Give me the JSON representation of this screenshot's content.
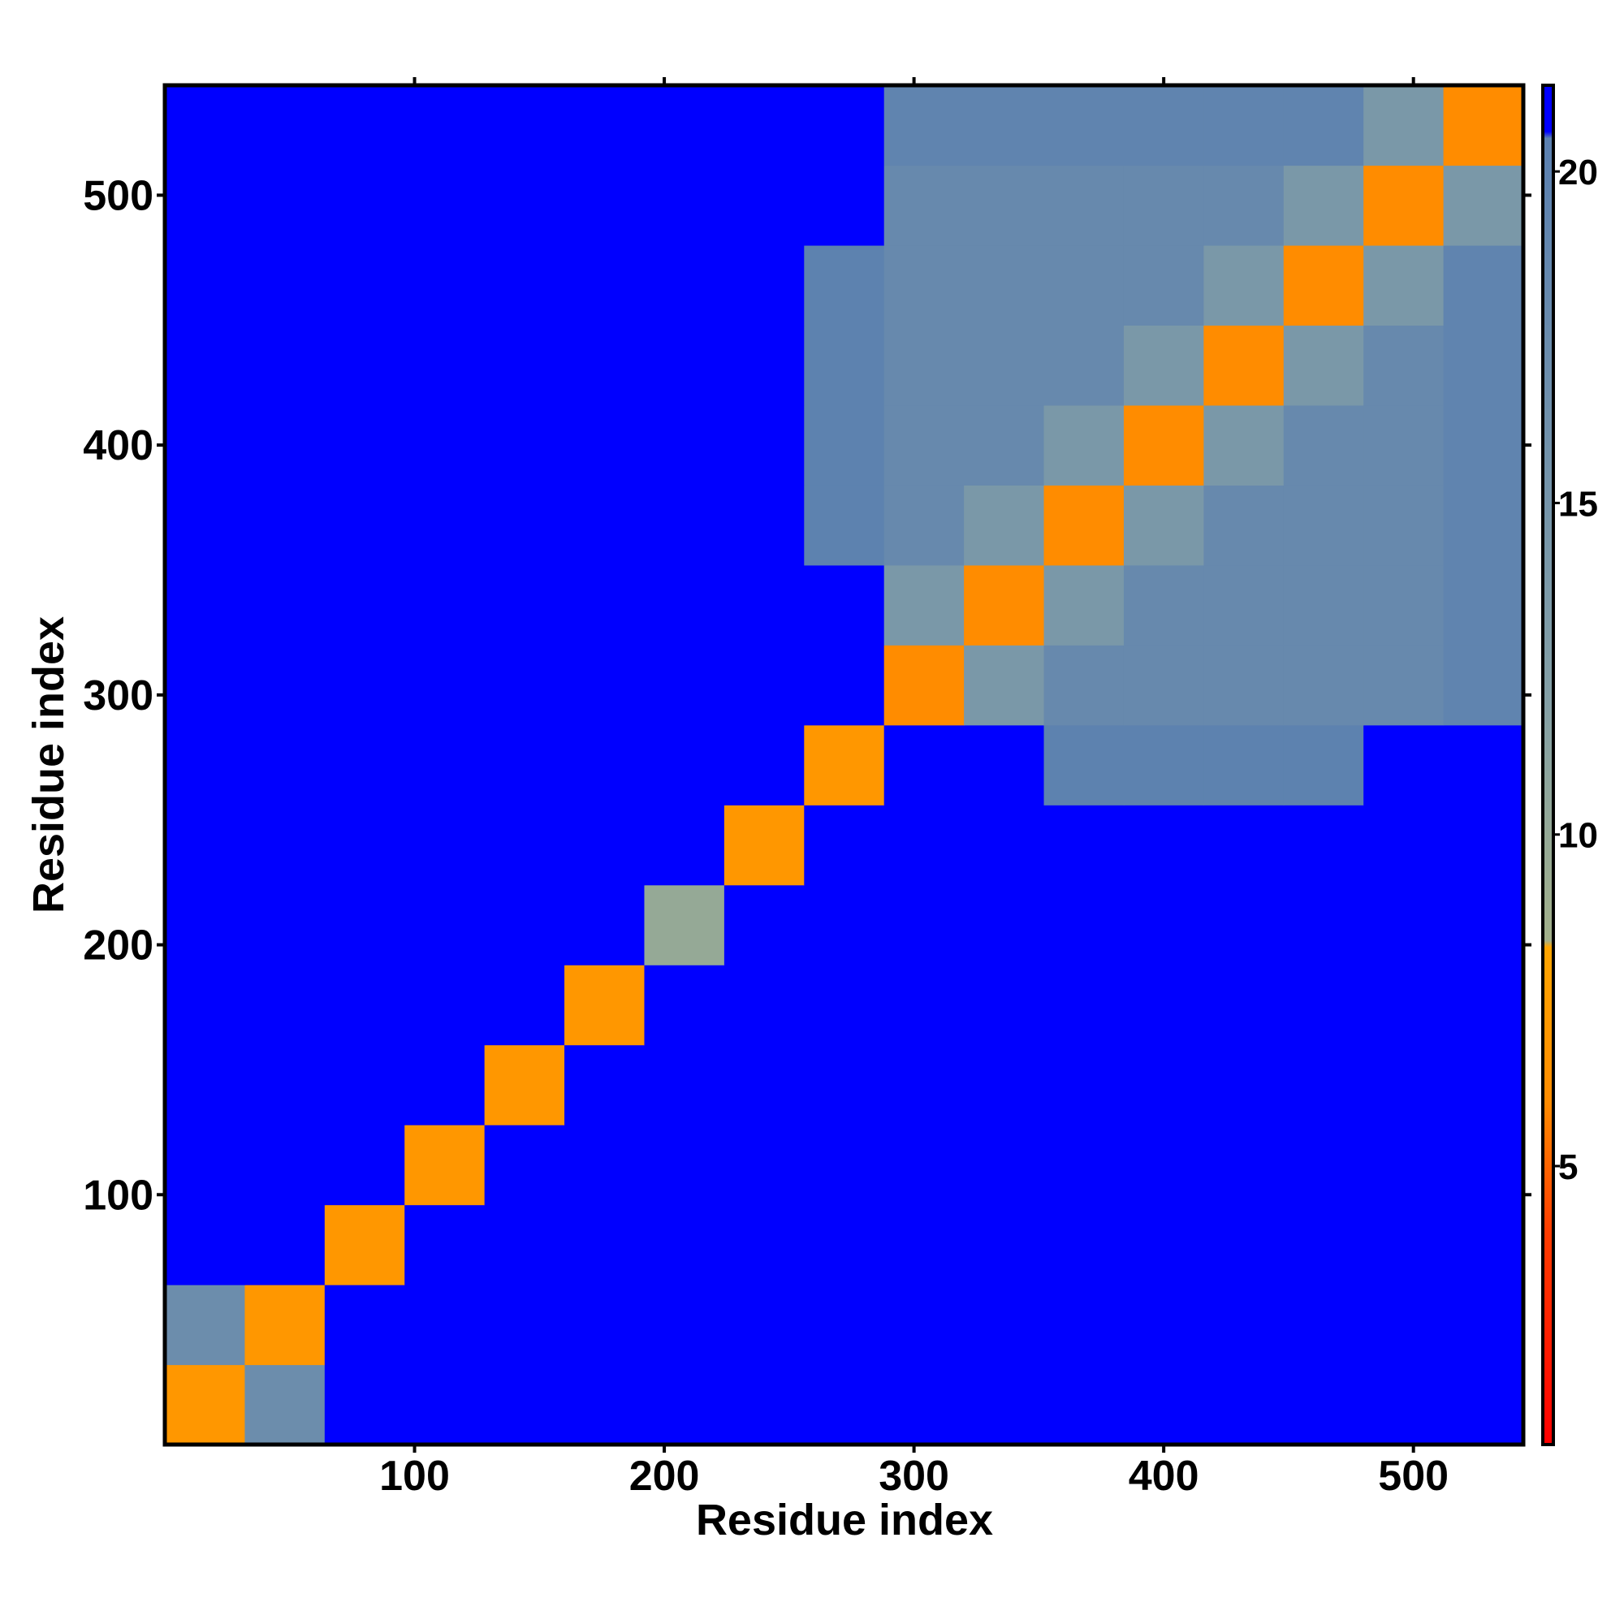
{
  "chart_data": {
    "type": "heatmap",
    "x_label": "Residue index",
    "y_label": "Residue index",
    "xlim": [
      0,
      544
    ],
    "ylim": [
      0,
      544
    ],
    "xticks": [
      100,
      200,
      300,
      400,
      500
    ],
    "yticks": [
      100,
      200,
      300,
      400,
      500
    ],
    "x_bins": [
      0,
      32,
      64,
      96,
      128,
      160,
      192,
      224,
      256,
      288,
      320,
      352,
      384,
      416,
      448,
      480,
      512,
      544
    ],
    "y_bins": [
      0,
      32,
      64,
      96,
      128,
      160,
      192,
      224,
      256,
      288,
      320,
      352,
      384,
      416,
      448,
      480,
      512,
      544
    ],
    "values": [
      [
        7,
        17,
        21,
        21,
        21,
        21,
        21,
        21,
        21,
        21,
        21,
        21,
        21,
        21,
        21,
        21,
        21
      ],
      [
        17,
        7,
        21,
        21,
        21,
        21,
        21,
        21,
        21,
        21,
        21,
        21,
        21,
        21,
        21,
        21,
        21
      ],
      [
        21,
        21,
        7,
        21,
        21,
        21,
        21,
        21,
        21,
        21,
        21,
        21,
        21,
        21,
        21,
        21,
        21
      ],
      [
        21,
        21,
        21,
        7,
        21,
        21,
        21,
        21,
        21,
        21,
        21,
        21,
        21,
        21,
        21,
        21,
        21
      ],
      [
        21,
        21,
        21,
        21,
        7,
        21,
        21,
        21,
        21,
        21,
        21,
        21,
        21,
        21,
        21,
        21,
        21
      ],
      [
        21,
        21,
        21,
        21,
        21,
        7,
        21,
        21,
        21,
        21,
        21,
        21,
        21,
        21,
        21,
        21,
        21
      ],
      [
        21,
        21,
        21,
        21,
        21,
        21,
        10,
        21,
        21,
        21,
        21,
        21,
        21,
        21,
        21,
        21,
        21
      ],
      [
        21,
        21,
        21,
        21,
        21,
        21,
        21,
        7,
        21,
        21,
        21,
        21,
        21,
        21,
        21,
        21,
        21
      ],
      [
        21,
        21,
        21,
        21,
        21,
        21,
        21,
        21,
        7,
        21,
        21,
        20,
        20,
        20,
        20,
        21,
        21
      ],
      [
        21,
        21,
        21,
        21,
        21,
        21,
        21,
        21,
        21,
        6,
        14,
        18,
        18,
        18,
        18,
        18,
        19.5
      ],
      [
        21,
        21,
        21,
        21,
        21,
        21,
        21,
        21,
        21,
        14,
        6,
        14,
        18,
        18,
        18,
        18,
        19.5
      ],
      [
        21,
        21,
        21,
        21,
        21,
        21,
        21,
        21,
        20,
        18,
        14,
        6,
        14,
        18,
        18,
        18,
        19.5
      ],
      [
        21,
        21,
        21,
        21,
        21,
        21,
        21,
        21,
        20,
        18,
        18,
        14,
        6,
        14,
        18,
        18,
        19.5
      ],
      [
        21,
        21,
        21,
        21,
        21,
        21,
        21,
        21,
        20,
        18,
        18,
        18,
        14,
        6,
        14,
        18,
        19.5
      ],
      [
        21,
        21,
        21,
        21,
        21,
        21,
        21,
        21,
        20,
        18,
        18,
        18,
        18,
        14,
        6,
        14,
        19.5
      ],
      [
        21,
        21,
        21,
        21,
        21,
        21,
        21,
        21,
        21,
        18,
        18,
        18,
        18,
        18,
        14,
        6,
        14
      ],
      [
        21,
        21,
        21,
        21,
        21,
        21,
        21,
        21,
        21,
        19.5,
        19.5,
        19.5,
        19.5,
        19.5,
        19.5,
        14,
        6
      ]
    ],
    "zlim": [
      0.8,
      21.3
    ],
    "zticks": [
      5,
      10,
      15,
      20
    ],
    "colorscale": [
      {
        "value": 0.8,
        "color": "#ff0000"
      },
      {
        "value": 4,
        "color": "#ff3c00"
      },
      {
        "value": 6,
        "color": "#ff8c00"
      },
      {
        "value": 8.3,
        "color": "#ffa500"
      },
      {
        "value": 8.4,
        "color": "#a2b08a"
      },
      {
        "value": 12,
        "color": "#84a0a6"
      },
      {
        "value": 20.5,
        "color": "#5b80b0"
      },
      {
        "value": 20.6,
        "color": "#0000ff"
      },
      {
        "value": 21.3,
        "color": "#0000ff"
      }
    ]
  }
}
